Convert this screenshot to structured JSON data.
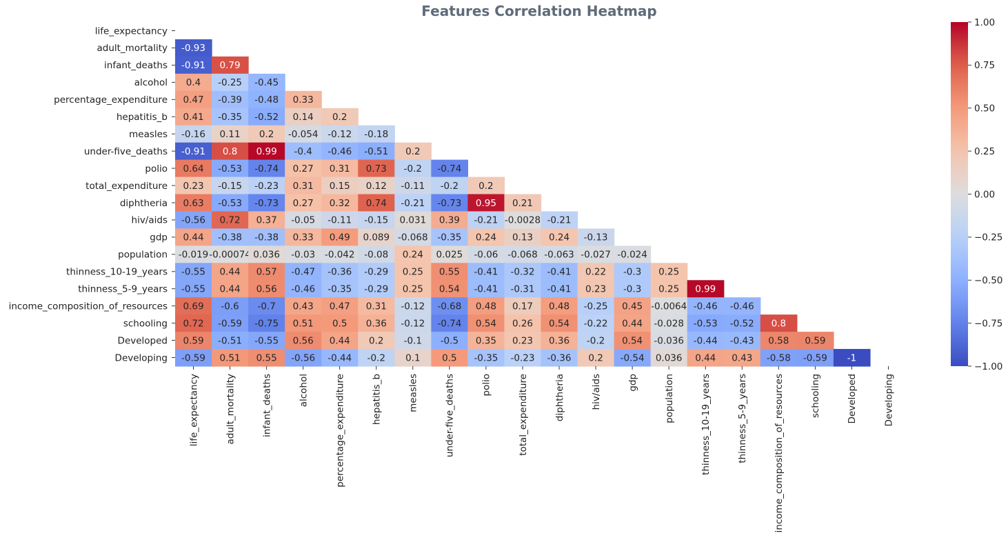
{
  "chart_data": {
    "type": "heatmap",
    "title": "Features Correlation Heatmap",
    "variables": [
      "life_expectancy",
      "adult_mortality",
      "infant_deaths",
      "alcohol",
      "percentage_expenditure",
      "hepatitis_b",
      "measles",
      "under-five_deaths",
      "polio",
      "total_expenditure",
      "diphtheria",
      "hiv/aids",
      "gdp",
      "population",
      "thinness_10-19_years",
      "thinness_5-9_years",
      "income_composition_of_resources",
      "schooling",
      "Developed",
      "Developing"
    ],
    "mask": "upper-triangle-and-diagonal",
    "colormap": "coolwarm",
    "vmin": -1,
    "vmax": 1,
    "colorbar_ticks": [
      "1.00",
      "0.75",
      "0.50",
      "0.25",
      "0.00",
      "−0.25",
      "−0.50",
      "−0.75",
      "−1.00"
    ],
    "colorbar_tick_values": [
      1,
      0.75,
      0.5,
      0.25,
      0,
      -0.25,
      -0.5,
      -0.75,
      -1
    ],
    "rows": [
      [],
      [
        "-0.93"
      ],
      [
        "-0.91",
        "0.79"
      ],
      [
        "0.4",
        "-0.25",
        "-0.45"
      ],
      [
        "0.47",
        "-0.39",
        "-0.48",
        "0.33"
      ],
      [
        "0.41",
        "-0.35",
        "-0.52",
        "0.14",
        "0.2"
      ],
      [
        "-0.16",
        "0.11",
        "0.2",
        "-0.054",
        "-0.12",
        "-0.18"
      ],
      [
        "-0.91",
        "0.8",
        "0.99",
        "-0.4",
        "-0.46",
        "-0.51",
        "0.2"
      ],
      [
        "0.64",
        "-0.53",
        "-0.74",
        "0.27",
        "0.31",
        "0.73",
        "-0.2",
        "-0.74"
      ],
      [
        "0.23",
        "-0.15",
        "-0.23",
        "0.31",
        "0.15",
        "0.12",
        "-0.11",
        "-0.2",
        "0.2"
      ],
      [
        "0.63",
        "-0.53",
        "-0.73",
        "0.27",
        "0.32",
        "0.74",
        "-0.21",
        "-0.73",
        "0.95",
        "0.21"
      ],
      [
        "-0.56",
        "0.72",
        "0.37",
        "-0.05",
        "-0.11",
        "-0.15",
        "0.031",
        "0.39",
        "-0.21",
        "-0.0028",
        "-0.21"
      ],
      [
        "0.44",
        "-0.38",
        "-0.38",
        "0.33",
        "0.49",
        "0.089",
        "-0.068",
        "-0.35",
        "0.24",
        "0.13",
        "0.24",
        "-0.13"
      ],
      [
        "-0.019",
        "-0.00074",
        "0.036",
        "-0.03",
        "-0.042",
        "-0.08",
        "0.24",
        "0.025",
        "-0.06",
        "-0.068",
        "-0.063",
        "-0.027",
        "-0.024"
      ],
      [
        "-0.55",
        "0.44",
        "0.57",
        "-0.47",
        "-0.36",
        "-0.29",
        "0.25",
        "0.55",
        "-0.41",
        "-0.32",
        "-0.41",
        "0.22",
        "-0.3",
        "0.25"
      ],
      [
        "-0.55",
        "0.44",
        "0.56",
        "-0.46",
        "-0.35",
        "-0.29",
        "0.25",
        "0.54",
        "-0.41",
        "-0.31",
        "-0.41",
        "0.23",
        "-0.3",
        "0.25",
        "0.99"
      ],
      [
        "0.69",
        "-0.6",
        "-0.7",
        "0.43",
        "0.47",
        "0.31",
        "-0.12",
        "-0.68",
        "0.48",
        "0.17",
        "0.48",
        "-0.25",
        "0.45",
        "-0.0064",
        "-0.46",
        "-0.46"
      ],
      [
        "0.72",
        "-0.59",
        "-0.75",
        "0.51",
        "0.5",
        "0.36",
        "-0.12",
        "-0.74",
        "0.54",
        "0.26",
        "0.54",
        "-0.22",
        "0.44",
        "-0.028",
        "-0.53",
        "-0.52",
        "0.8"
      ],
      [
        "0.59",
        "-0.51",
        "-0.55",
        "0.56",
        "0.44",
        "0.2",
        "-0.1",
        "-0.5",
        "0.35",
        "0.23",
        "0.36",
        "-0.2",
        "0.54",
        "-0.036",
        "-0.44",
        "-0.43",
        "0.58",
        "0.59"
      ],
      [
        "-0.59",
        "0.51",
        "0.55",
        "-0.56",
        "-0.44",
        "-0.2",
        "0.1",
        "0.5",
        "-0.35",
        "-0.23",
        "-0.36",
        "0.2",
        "-0.54",
        "0.036",
        "0.44",
        "0.43",
        "-0.58",
        "-0.59",
        "-1"
      ]
    ]
  }
}
